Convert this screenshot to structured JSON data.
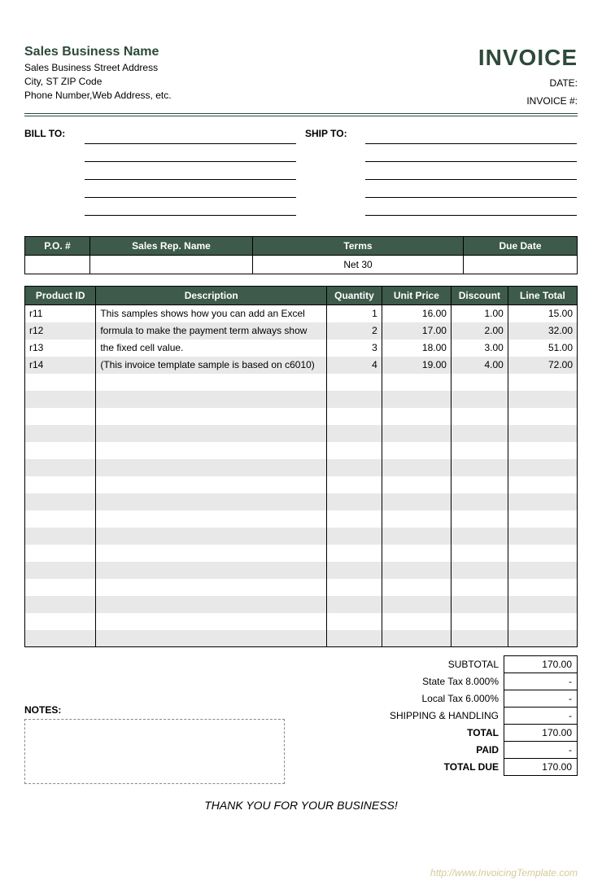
{
  "company": {
    "name": "Sales Business Name",
    "address": "Sales Business Street Address",
    "city_line": "City, ST  ZIP Code",
    "contact": "Phone Number,Web Address, etc."
  },
  "invoice": {
    "title": "INVOICE",
    "date_label": "DATE:",
    "number_label": "INVOICE #:",
    "date_value": "",
    "number_value": ""
  },
  "bill_to_label": "BILL TO:",
  "ship_to_label": "SHIP TO:",
  "order_headers": {
    "po": "P.O. #",
    "rep": "Sales Rep. Name",
    "terms": "Terms",
    "due": "Due Date"
  },
  "order_values": {
    "po": "",
    "rep": "",
    "terms": "Net 30",
    "due": ""
  },
  "items_headers": {
    "pid": "Product ID",
    "desc": "Description",
    "qty": "Quantity",
    "price": "Unit Price",
    "disc": "Discount",
    "total": "Line Total"
  },
  "items": [
    {
      "pid": "r11",
      "desc": "This samples shows how you can add an Excel",
      "qty": "1",
      "price": "16.00",
      "disc": "1.00",
      "total": "15.00"
    },
    {
      "pid": "r12",
      "desc": "formula to make the payment term always show",
      "qty": "2",
      "price": "17.00",
      "disc": "2.00",
      "total": "32.00"
    },
    {
      "pid": "r13",
      "desc": "the fixed cell value.",
      "qty": "3",
      "price": "18.00",
      "disc": "3.00",
      "total": "51.00"
    },
    {
      "pid": "r14",
      "desc": "(This invoice template sample is based on c6010)",
      "qty": "4",
      "price": "19.00",
      "disc": "4.00",
      "total": "72.00"
    }
  ],
  "empty_rows": 16,
  "totals": {
    "subtotal_label": "SUBTOTAL",
    "subtotal_value": "170.00",
    "state_tax_label": "State Tax  8.000%",
    "state_tax_value": "-",
    "local_tax_label": "Local Tax  6.000%",
    "local_tax_value": "-",
    "shipping_label": "SHIPPING & HANDLING",
    "shipping_value": "-",
    "total_label": "TOTAL",
    "total_value": "170.00",
    "paid_label": "PAID",
    "paid_value": "-",
    "due_label": "TOTAL DUE",
    "due_value": "170.00"
  },
  "notes_label": "NOTES:",
  "thank_you": "THANK YOU FOR YOUR BUSINESS!",
  "watermark": "http://www.InvoicingTemplate.com",
  "colors": {
    "header_bg": "#3d5a4a",
    "accent": "#2d4a3a",
    "stripe": "#e8e8e8"
  }
}
